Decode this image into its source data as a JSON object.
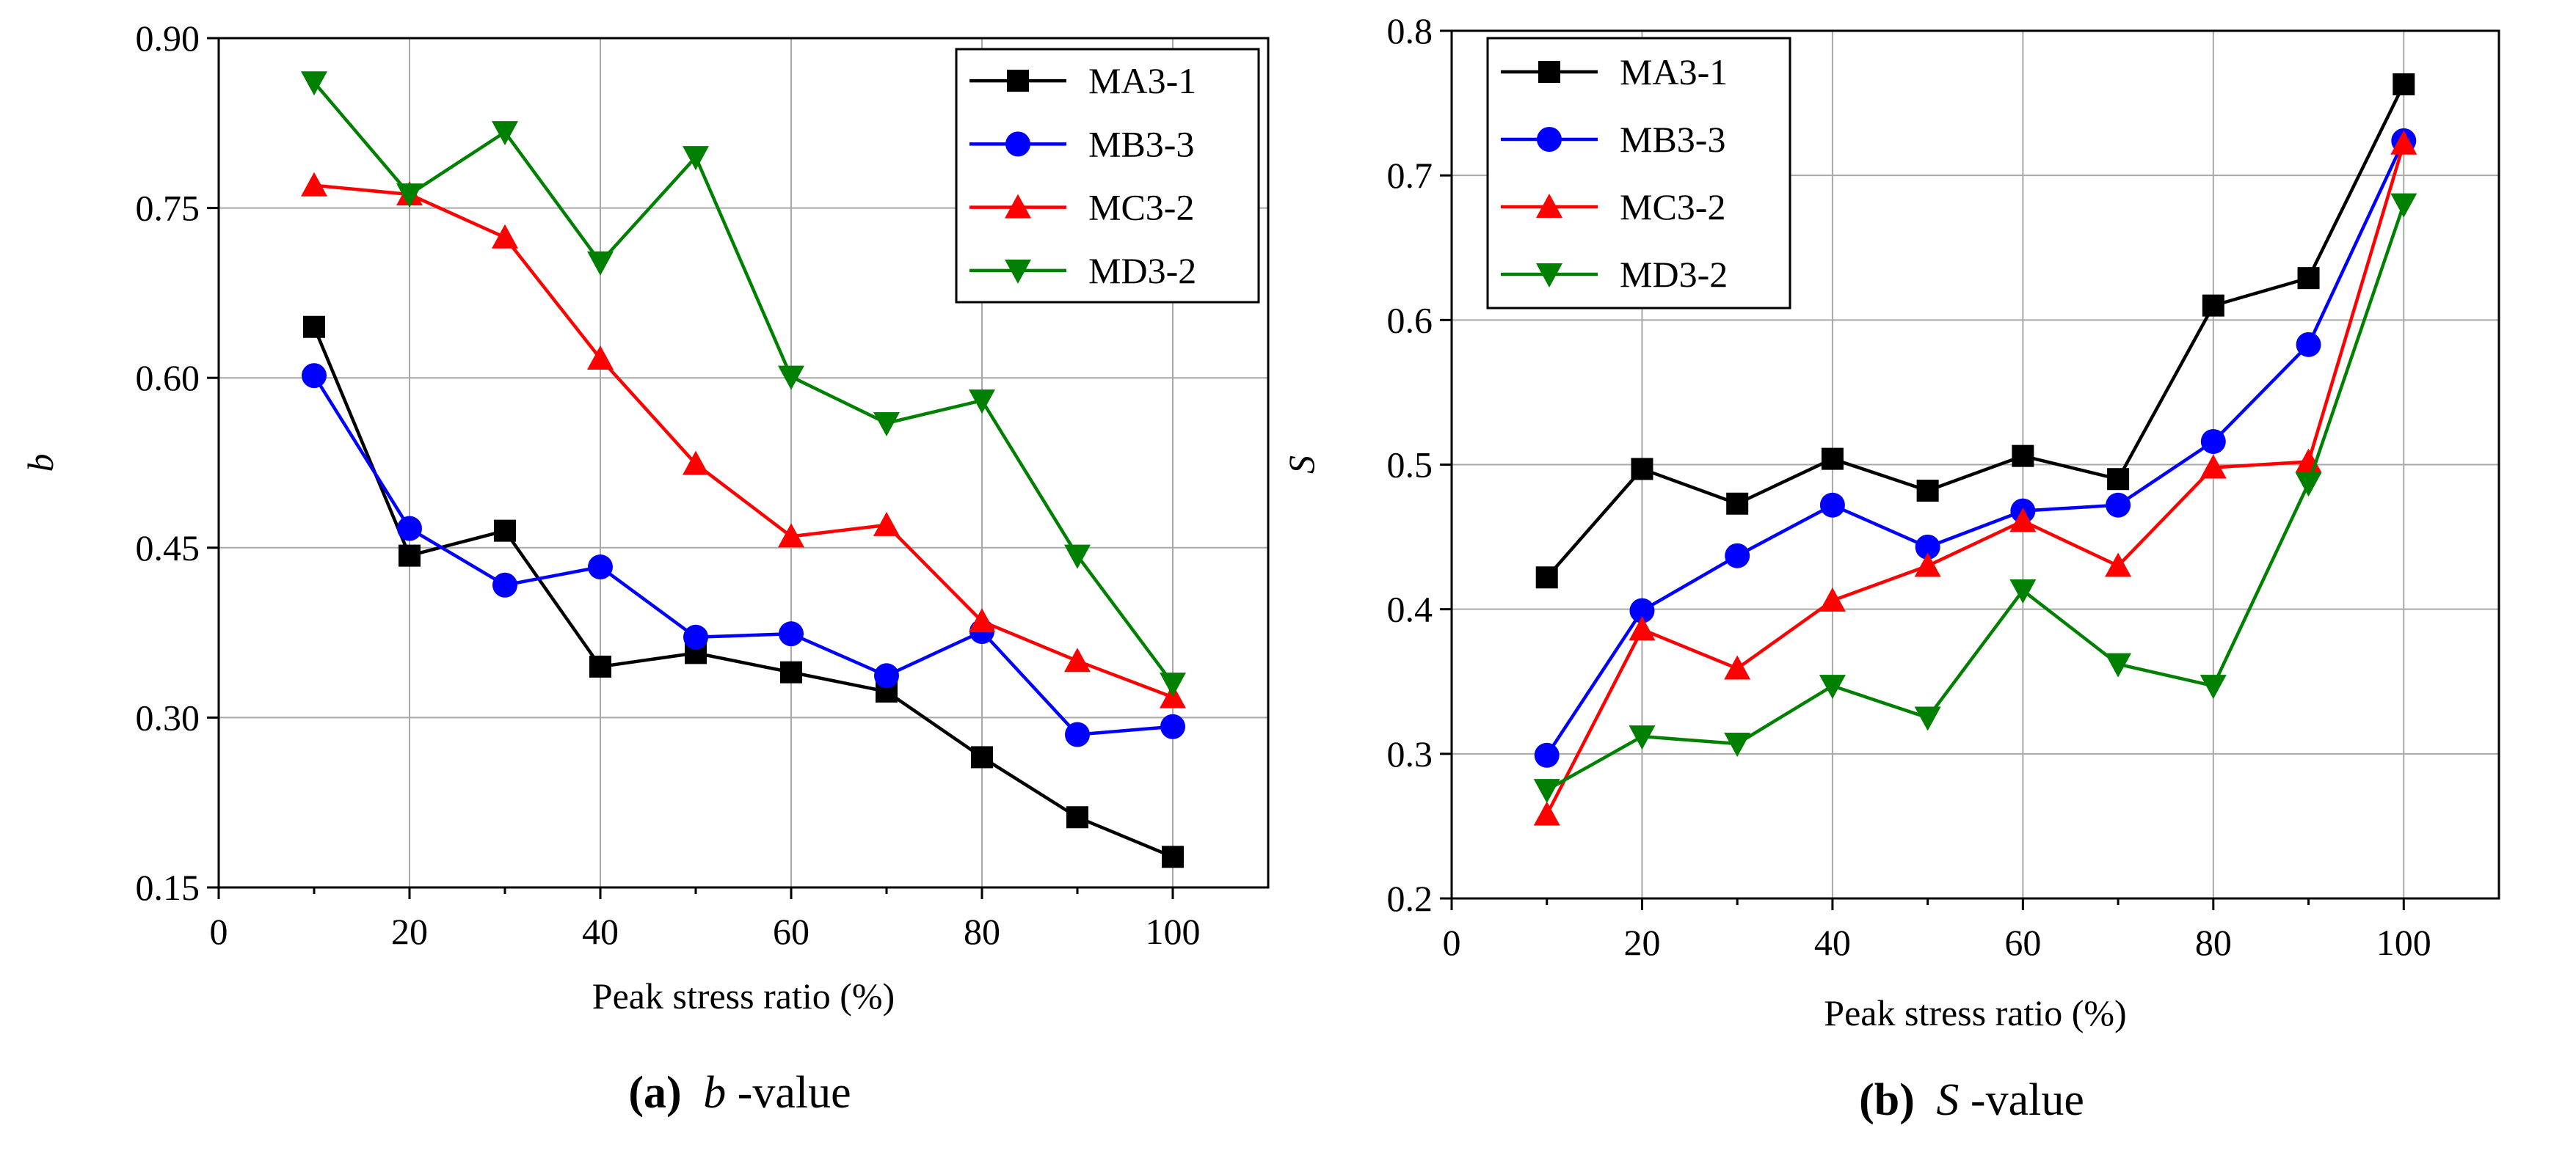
{
  "chart_data": [
    {
      "type": "line",
      "caption": {
        "letter": "(a)",
        "symbol": "b",
        "suffix": "-value"
      },
      "xlabel": "Peak stress ratio (%)",
      "ylabel": "b",
      "xlim": [
        0,
        110
      ],
      "ylim": [
        0.15,
        0.9
      ],
      "xticks": [
        0,
        20,
        40,
        60,
        80,
        100
      ],
      "yticks": [
        0.15,
        0.3,
        0.45,
        0.6,
        0.75,
        0.9
      ],
      "ytick_labels": [
        "0.15",
        "0.30",
        "0.45",
        "0.60",
        "0.75",
        "0.90"
      ],
      "grid": true,
      "legend": "top-right",
      "x": [
        10,
        20,
        30,
        40,
        50,
        60,
        70,
        80,
        90,
        100
      ],
      "series": [
        {
          "name": "MA3-1",
          "color": "#000000",
          "marker": "square",
          "values": [
            0.645,
            0.443,
            0.465,
            0.345,
            0.357,
            0.34,
            0.323,
            0.265,
            0.212,
            0.177
          ]
        },
        {
          "name": "MB3-3",
          "color": "#0000ff",
          "marker": "circle",
          "values": [
            0.602,
            0.467,
            0.417,
            0.433,
            0.371,
            0.374,
            0.337,
            0.376,
            0.285,
            0.292
          ]
        },
        {
          "name": "MC3-2",
          "color": "#ff0000",
          "marker": "triangle-up",
          "values": [
            0.77,
            0.762,
            0.724,
            0.617,
            0.524,
            0.46,
            0.47,
            0.385,
            0.35,
            0.318
          ]
        },
        {
          "name": "MD3-2",
          "color": "#008000",
          "marker": "triangle-down",
          "values": [
            0.861,
            0.762,
            0.817,
            0.702,
            0.795,
            0.601,
            0.56,
            0.58,
            0.443,
            0.33
          ]
        }
      ]
    },
    {
      "type": "line",
      "caption": {
        "letter": "(b)",
        "symbol": "S",
        "suffix": "-value"
      },
      "xlabel": "Peak stress ratio (%)",
      "ylabel": "S",
      "xlim": [
        0,
        110
      ],
      "ylim": [
        0.2,
        0.8
      ],
      "xticks": [
        0,
        20,
        40,
        60,
        80,
        100
      ],
      "yticks": [
        0.2,
        0.3,
        0.4,
        0.5,
        0.6,
        0.7,
        0.8
      ],
      "ytick_labels": [
        "0.2",
        "0.3",
        "0.4",
        "0.5",
        "0.6",
        "0.7",
        "0.8"
      ],
      "grid": true,
      "legend": "top-left",
      "x": [
        10,
        20,
        30,
        40,
        50,
        60,
        70,
        80,
        90,
        100
      ],
      "series": [
        {
          "name": "MA3-1",
          "color": "#000000",
          "marker": "square",
          "values": [
            0.422,
            0.497,
            0.473,
            0.504,
            0.482,
            0.506,
            0.49,
            0.61,
            0.629,
            0.763
          ]
        },
        {
          "name": "MB3-3",
          "color": "#0000ff",
          "marker": "circle",
          "values": [
            0.299,
            0.399,
            0.437,
            0.472,
            0.443,
            0.468,
            0.472,
            0.516,
            0.583,
            0.724
          ]
        },
        {
          "name": "MC3-2",
          "color": "#ff0000",
          "marker": "triangle-up",
          "values": [
            0.258,
            0.386,
            0.359,
            0.406,
            0.43,
            0.461,
            0.43,
            0.498,
            0.502,
            0.722
          ]
        },
        {
          "name": "MD3-2",
          "color": "#008000",
          "marker": "triangle-down",
          "values": [
            0.275,
            0.312,
            0.307,
            0.347,
            0.325,
            0.413,
            0.362,
            0.347,
            0.487,
            0.68
          ]
        }
      ]
    }
  ]
}
